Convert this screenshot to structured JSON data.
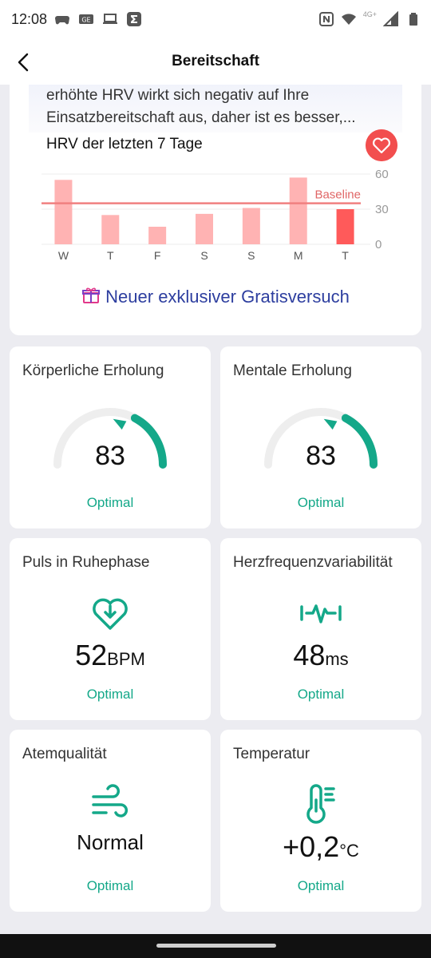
{
  "status_bar": {
    "time": "12:08",
    "network_label": "4G+"
  },
  "app_bar": {
    "title": "Bereitschaft"
  },
  "hrv_section": {
    "description": "erhöhte HRV wirkt sich negativ auf Ihre Einsatzbereitschaft aus, daher ist es besser,...",
    "title": "HRV der letzten 7 Tage",
    "promo_text": "Neuer exklusiver Gratisversuch"
  },
  "chart_data": {
    "type": "bar",
    "title": "HRV der letzten 7 Tage",
    "categories": [
      "W",
      "T",
      "F",
      "S",
      "S",
      "M",
      "T"
    ],
    "values": [
      55,
      25,
      15,
      26,
      31,
      57,
      30
    ],
    "highlight_index": 6,
    "baseline": 35,
    "baseline_label": "Baseline",
    "ylim": [
      0,
      60
    ],
    "yticks": [
      "60",
      "30",
      "0"
    ],
    "colors": {
      "bar": "#ffb3b3",
      "bar_highlight": "#ff5a5a",
      "baseline": "#f08080"
    }
  },
  "cards": [
    {
      "title": "Körperliche Erholung",
      "value": "83",
      "status": "Optimal",
      "gauge_fraction": 0.83
    },
    {
      "title": "Mentale Erholung",
      "value": "83",
      "status": "Optimal",
      "gauge_fraction": 0.83
    },
    {
      "title": "Puls in Ruhephase",
      "value": "52",
      "unit": "BPM",
      "status": "Optimal",
      "icon": "heart-down-icon"
    },
    {
      "title": "Herzfrequenzvariabilität",
      "value": "48",
      "unit": "ms",
      "status": "Optimal",
      "icon": "pulse-wave-icon"
    },
    {
      "title": "Atemqualität",
      "value": "Normal",
      "status": "Optimal",
      "icon": "wind-icon"
    },
    {
      "title": "Temperatur",
      "value": "+0,2",
      "unit": "°C",
      "status": "Optimal",
      "icon": "thermometer-icon"
    }
  ],
  "colors": {
    "accent": "#14a889",
    "heart_badge": "#f24e4e",
    "promo_text": "#2d3e9f"
  }
}
